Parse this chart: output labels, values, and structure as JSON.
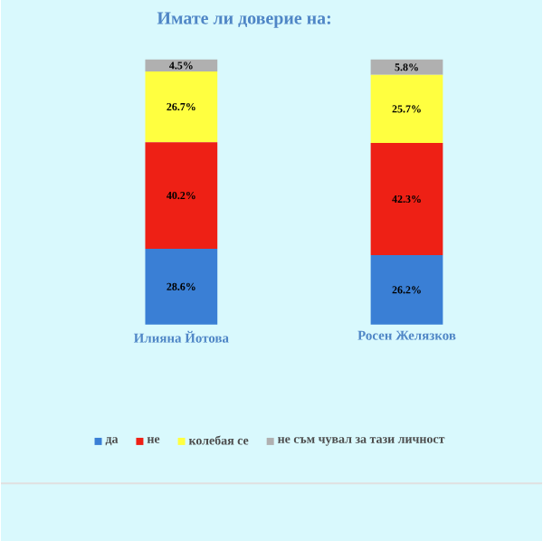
{
  "chart_data": {
    "type": "bar",
    "title": "Имате  ли доверие на:",
    "stacked": true,
    "legend": "bottom",
    "categories": [
      "Илияна Йотова",
      "Росен Желязков"
    ],
    "series": [
      {
        "name": "да",
        "color": "#3a7fd5",
        "values": [
          28.6,
          26.2
        ],
        "value_labels": [
          "28.6%",
          "26.2%"
        ]
      },
      {
        "name": "не",
        "color": "#ee2015",
        "values": [
          40.2,
          42.3
        ],
        "value_labels": [
          "40.2%",
          "42.3%"
        ]
      },
      {
        "name": "колебая се",
        "color": "#ffff40",
        "values": [
          26.7,
          25.7
        ],
        "value_labels": [
          "26.7%",
          "25.7%"
        ]
      },
      {
        "name": "не съм чувал за тази личност",
        "color": "#b0b0b0",
        "values": [
          4.5,
          5.8
        ],
        "value_labels": [
          "4.5%",
          "5.8%"
        ]
      }
    ]
  }
}
